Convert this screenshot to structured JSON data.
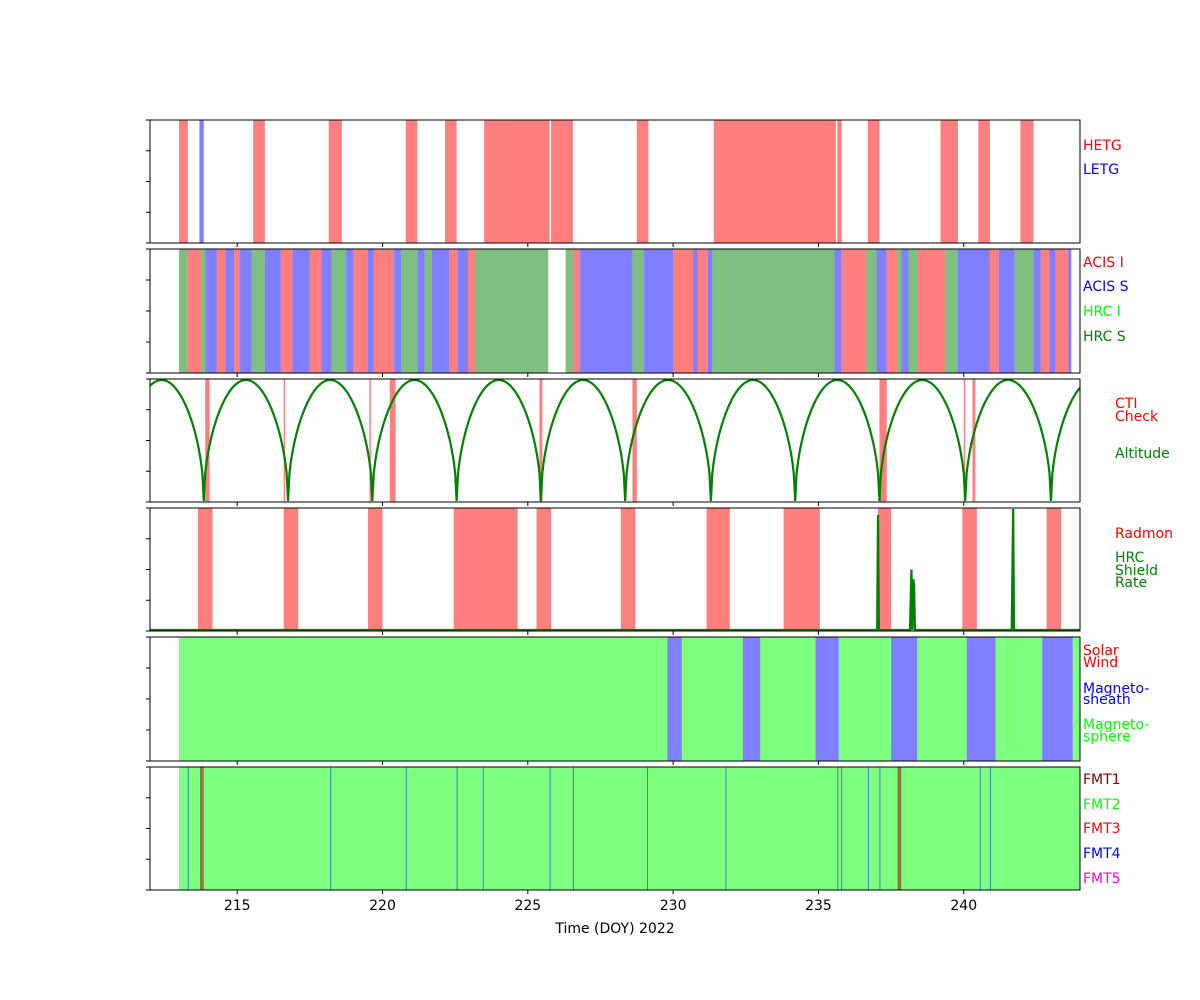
{
  "chart_data": {
    "type": "timeline",
    "x_axis": {
      "label": "Time (DOY) 2022",
      "xlim": [
        212.0,
        244.0
      ],
      "ticks": [
        215,
        220,
        225,
        230,
        235,
        240
      ]
    },
    "panels": [
      {
        "key": "grating",
        "legend": [
          {
            "label": "HETG",
            "color": "#ff0000"
          },
          {
            "label": "LETG",
            "color": "#0000ff"
          }
        ],
        "intervals": [
          {
            "start": 213.0,
            "end": 213.3,
            "label": "HETG"
          },
          {
            "start": 213.7,
            "end": 213.85,
            "label": "LETG"
          },
          {
            "start": 215.55,
            "end": 215.95,
            "label": "HETG"
          },
          {
            "start": 218.15,
            "end": 218.6,
            "label": "HETG"
          },
          {
            "start": 220.8,
            "end": 221.2,
            "label": "HETG"
          },
          {
            "start": 222.15,
            "end": 222.55,
            "label": "HETG"
          },
          {
            "start": 223.5,
            "end": 225.75,
            "label": "HETG"
          },
          {
            "start": 225.8,
            "end": 226.55,
            "label": "HETG"
          },
          {
            "start": 228.75,
            "end": 229.15,
            "label": "HETG"
          },
          {
            "start": 231.4,
            "end": 235.6,
            "label": "HETG"
          },
          {
            "start": 235.65,
            "end": 235.8,
            "label": "HETG"
          },
          {
            "start": 236.7,
            "end": 237.1,
            "label": "HETG"
          },
          {
            "start": 239.2,
            "end": 239.8,
            "label": "HETG"
          },
          {
            "start": 240.5,
            "end": 240.9,
            "label": "HETG"
          },
          {
            "start": 241.95,
            "end": 242.4,
            "label": "HETG"
          }
        ]
      },
      {
        "key": "instrument",
        "legend": [
          {
            "label": "ACIS I",
            "color": "#ff0000"
          },
          {
            "label": "ACIS S",
            "color": "#0000ff"
          },
          {
            "label": "HRC I",
            "color": "#00ff00"
          },
          {
            "label": "HRC S",
            "color": "#008000"
          }
        ],
        "intervals": [
          {
            "start": 213.0,
            "end": 213.3,
            "label": "HRC S"
          },
          {
            "start": 213.3,
            "end": 213.75,
            "label": "ACIS I"
          },
          {
            "start": 213.75,
            "end": 213.9,
            "label": "HRC S"
          },
          {
            "start": 213.9,
            "end": 214.3,
            "label": "ACIS S"
          },
          {
            "start": 214.3,
            "end": 214.6,
            "label": "ACIS I"
          },
          {
            "start": 214.6,
            "end": 214.9,
            "label": "ACIS S"
          },
          {
            "start": 214.9,
            "end": 215.1,
            "label": "ACIS I"
          },
          {
            "start": 215.1,
            "end": 215.5,
            "label": "ACIS S"
          },
          {
            "start": 215.5,
            "end": 215.95,
            "label": "HRC S"
          },
          {
            "start": 215.95,
            "end": 216.5,
            "label": "ACIS S"
          },
          {
            "start": 216.5,
            "end": 216.9,
            "label": "ACIS I"
          },
          {
            "start": 216.9,
            "end": 217.5,
            "label": "ACIS S"
          },
          {
            "start": 217.5,
            "end": 217.9,
            "label": "ACIS I"
          },
          {
            "start": 217.9,
            "end": 218.25,
            "label": "ACIS S"
          },
          {
            "start": 218.25,
            "end": 218.75,
            "label": "HRC S"
          },
          {
            "start": 218.75,
            "end": 219.0,
            "label": "ACIS S"
          },
          {
            "start": 219.0,
            "end": 219.5,
            "label": "ACIS I"
          },
          {
            "start": 219.5,
            "end": 219.7,
            "label": "ACIS S"
          },
          {
            "start": 219.7,
            "end": 220.4,
            "label": "ACIS I"
          },
          {
            "start": 220.4,
            "end": 220.65,
            "label": "ACIS S"
          },
          {
            "start": 220.65,
            "end": 221.2,
            "label": "HRC S"
          },
          {
            "start": 221.2,
            "end": 221.45,
            "label": "ACIS S"
          },
          {
            "start": 221.45,
            "end": 221.7,
            "label": "HRC S"
          },
          {
            "start": 221.7,
            "end": 222.3,
            "label": "ACIS S"
          },
          {
            "start": 222.3,
            "end": 222.6,
            "label": "ACIS I"
          },
          {
            "start": 222.6,
            "end": 222.95,
            "label": "ACIS S"
          },
          {
            "start": 222.95,
            "end": 223.2,
            "label": "ACIS I"
          },
          {
            "start": 223.2,
            "end": 225.7,
            "label": "HRC S"
          },
          {
            "start": 226.3,
            "end": 226.55,
            "label": "HRC S"
          },
          {
            "start": 226.55,
            "end": 226.8,
            "label": "ACIS I"
          },
          {
            "start": 226.8,
            "end": 228.6,
            "label": "ACIS S"
          },
          {
            "start": 228.6,
            "end": 229.0,
            "label": "HRC S"
          },
          {
            "start": 229.0,
            "end": 230.0,
            "label": "ACIS S"
          },
          {
            "start": 230.0,
            "end": 230.7,
            "label": "ACIS I"
          },
          {
            "start": 230.7,
            "end": 230.85,
            "label": "ACIS S"
          },
          {
            "start": 230.85,
            "end": 231.2,
            "label": "ACIS I"
          },
          {
            "start": 231.2,
            "end": 231.35,
            "label": "ACIS S"
          },
          {
            "start": 231.35,
            "end": 235.55,
            "label": "HRC S"
          },
          {
            "start": 235.55,
            "end": 235.8,
            "label": "ACIS S"
          },
          {
            "start": 235.8,
            "end": 236.65,
            "label": "ACIS I"
          },
          {
            "start": 236.65,
            "end": 237.0,
            "label": "HRC S"
          },
          {
            "start": 237.0,
            "end": 237.35,
            "label": "ACIS S"
          },
          {
            "start": 237.35,
            "end": 237.7,
            "label": "ACIS I"
          },
          {
            "start": 237.7,
            "end": 237.85,
            "label": "HRC S"
          },
          {
            "start": 237.85,
            "end": 238.1,
            "label": "ACIS S"
          },
          {
            "start": 238.1,
            "end": 238.4,
            "label": "HRC S"
          },
          {
            "start": 238.4,
            "end": 239.35,
            "label": "ACIS I"
          },
          {
            "start": 239.35,
            "end": 239.8,
            "label": "HRC S"
          },
          {
            "start": 239.8,
            "end": 240.9,
            "label": "ACIS S"
          },
          {
            "start": 240.9,
            "end": 241.2,
            "label": "ACIS I"
          },
          {
            "start": 241.2,
            "end": 241.75,
            "label": "ACIS S"
          },
          {
            "start": 241.75,
            "end": 242.4,
            "label": "HRC S"
          },
          {
            "start": 242.4,
            "end": 242.65,
            "label": "ACIS S"
          },
          {
            "start": 242.65,
            "end": 242.95,
            "label": "ACIS I"
          },
          {
            "start": 242.95,
            "end": 243.15,
            "label": "ACIS S"
          },
          {
            "start": 243.15,
            "end": 243.6,
            "label": "ACIS I"
          },
          {
            "start": 243.6,
            "end": 243.7,
            "label": "ACIS S"
          }
        ]
      },
      {
        "key": "altitude",
        "legend": [
          {
            "label": "CTI",
            "color": "#ff0000"
          },
          {
            "label": "Check",
            "color": "#ff0000"
          },
          {
            "label": "Altitude",
            "color": "#008000"
          }
        ],
        "intervals": [
          {
            "start": 213.9,
            "end": 214.05,
            "label": "CTI Check"
          },
          {
            "start": 216.6,
            "end": 216.65,
            "label": "CTI Check"
          },
          {
            "start": 219.55,
            "end": 219.6,
            "label": "CTI Check"
          },
          {
            "start": 220.25,
            "end": 220.45,
            "label": "CTI Check"
          },
          {
            "start": 225.4,
            "end": 225.5,
            "label": "CTI Check"
          },
          {
            "start": 228.6,
            "end": 228.75,
            "label": "CTI Check"
          },
          {
            "start": 237.1,
            "end": 237.35,
            "label": "CTI Check"
          },
          {
            "start": 240.0,
            "end": 240.05,
            "label": "CTI Check"
          },
          {
            "start": 240.3,
            "end": 240.4,
            "label": "CTI Check"
          }
        ],
        "perigees": [
          213.85,
          216.75,
          219.65,
          222.55,
          225.45,
          228.35,
          231.3,
          234.2,
          237.1,
          240.05,
          243.0
        ],
        "series": {
          "name": "Altitude",
          "color": "#008000"
        }
      },
      {
        "key": "radiation",
        "legend": [
          {
            "label": "Radmon",
            "color": "#ff0000"
          },
          {
            "label": "HRC",
            "color": "#008000"
          },
          {
            "label": "Shield",
            "color": "#008000"
          },
          {
            "label": "Rate",
            "color": "#008000"
          }
        ],
        "intervals": [
          {
            "start": 213.65,
            "end": 214.15,
            "label": "Radmon"
          },
          {
            "start": 216.6,
            "end": 217.1,
            "label": "Radmon"
          },
          {
            "start": 219.5,
            "end": 220.0,
            "label": "Radmon"
          },
          {
            "start": 222.45,
            "end": 224.65,
            "label": "Radmon"
          },
          {
            "start": 225.3,
            "end": 225.8,
            "label": "Radmon"
          },
          {
            "start": 228.2,
            "end": 228.7,
            "label": "Radmon"
          },
          {
            "start": 231.15,
            "end": 231.95,
            "label": "Radmon"
          },
          {
            "start": 233.8,
            "end": 235.05,
            "label": "Radmon"
          },
          {
            "start": 237.05,
            "end": 237.5,
            "label": "Radmon"
          },
          {
            "start": 239.95,
            "end": 240.45,
            "label": "Radmon"
          },
          {
            "start": 242.85,
            "end": 243.35,
            "label": "Radmon"
          }
        ],
        "series": {
          "name": "HRC Shield Rate",
          "color": "#008000",
          "ylim": [
            0,
            1
          ],
          "points": [
            [
              212.0,
              0.0
            ],
            [
              237.02,
              0.0
            ],
            [
              237.05,
              0.95
            ],
            [
              237.08,
              0.0
            ],
            [
              238.15,
              0.0
            ],
            [
              238.2,
              0.5
            ],
            [
              238.23,
              0.0
            ],
            [
              238.26,
              0.42
            ],
            [
              238.29,
              0.38
            ],
            [
              238.32,
              0.0
            ],
            [
              241.65,
              0.0
            ],
            [
              241.7,
              1.0
            ],
            [
              241.73,
              0.0
            ],
            [
              244.0,
              0.0
            ]
          ]
        }
      },
      {
        "key": "region",
        "legend": [
          {
            "label": "Solar",
            "color": "#ff0000"
          },
          {
            "label": "Wind",
            "color": "#ff0000"
          },
          {
            "label": "Magneto-",
            "color": "#0000ff"
          },
          {
            "label": "sheath",
            "color": "#0000ff"
          },
          {
            "label": "Magneto-",
            "color": "#00ff00"
          },
          {
            "label": "sphere",
            "color": "#00ff00"
          }
        ],
        "intervals": [
          {
            "start": 213.0,
            "end": 229.8,
            "label": "Magnetosphere"
          },
          {
            "start": 229.8,
            "end": 230.3,
            "label": "Magnetosheath"
          },
          {
            "start": 230.3,
            "end": 232.4,
            "label": "Magnetosphere"
          },
          {
            "start": 232.4,
            "end": 233.0,
            "label": "Magnetosheath"
          },
          {
            "start": 233.0,
            "end": 234.9,
            "label": "Magnetosphere"
          },
          {
            "start": 234.9,
            "end": 235.7,
            "label": "Magnetosheath"
          },
          {
            "start": 235.7,
            "end": 237.5,
            "label": "Magnetosphere"
          },
          {
            "start": 237.5,
            "end": 238.4,
            "label": "Magnetosheath"
          },
          {
            "start": 238.4,
            "end": 240.1,
            "label": "Magnetosphere"
          },
          {
            "start": 240.1,
            "end": 241.1,
            "label": "Magnetosheath"
          },
          {
            "start": 241.1,
            "end": 242.7,
            "label": "Magnetosphere"
          },
          {
            "start": 242.7,
            "end": 243.75,
            "label": "Magnetosheath"
          },
          {
            "start": 243.75,
            "end": 244.0,
            "label": "Magnetosphere"
          }
        ]
      },
      {
        "key": "format",
        "legend": [
          {
            "label": "FMT1",
            "color": "#800000"
          },
          {
            "label": "FMT2",
            "color": "#00ff00"
          },
          {
            "label": "FMT3",
            "color": "#ff0000"
          },
          {
            "label": "FMT4",
            "color": "#0000ff"
          },
          {
            "label": "FMT5",
            "color": "#ff00ff"
          }
        ],
        "intervals": [
          {
            "start": 213.0,
            "end": 244.0,
            "label": "FMT2"
          },
          {
            "start": 213.3,
            "end": 213.33,
            "label": "FMT4"
          },
          {
            "start": 213.72,
            "end": 213.85,
            "label": "FMT1"
          },
          {
            "start": 218.2,
            "end": 218.23,
            "label": "FMT4"
          },
          {
            "start": 220.8,
            "end": 220.83,
            "label": "FMT4"
          },
          {
            "start": 222.55,
            "end": 222.58,
            "label": "FMT4"
          },
          {
            "start": 223.45,
            "end": 223.48,
            "label": "FMT4"
          },
          {
            "start": 225.75,
            "end": 225.78,
            "label": "FMT4"
          },
          {
            "start": 226.55,
            "end": 226.58,
            "label": "FMT4"
          },
          {
            "start": 229.1,
            "end": 229.13,
            "label": "FMT4"
          },
          {
            "start": 231.8,
            "end": 231.83,
            "label": "FMT4"
          },
          {
            "start": 235.65,
            "end": 235.68,
            "label": "FMT4"
          },
          {
            "start": 235.78,
            "end": 235.81,
            "label": "FMT4"
          },
          {
            "start": 236.7,
            "end": 236.73,
            "label": "FMT4"
          },
          {
            "start": 237.1,
            "end": 237.13,
            "label": "FMT4"
          },
          {
            "start": 237.72,
            "end": 237.85,
            "label": "FMT1"
          },
          {
            "start": 240.55,
            "end": 240.58,
            "label": "FMT4"
          },
          {
            "start": 240.9,
            "end": 240.93,
            "label": "FMT4"
          }
        ]
      }
    ]
  }
}
